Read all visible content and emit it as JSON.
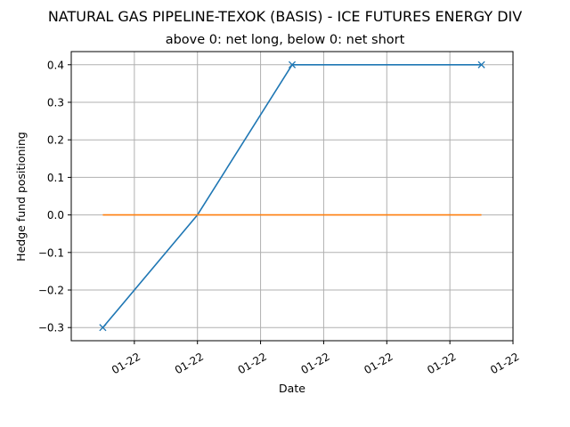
{
  "chart_data": {
    "type": "line",
    "title": "NATURAL GAS PIPELINE-TEXOK (BASIS) - ICE FUTURES ENERGY DIV",
    "subtitle": "above 0: net long, below 0: net short",
    "xlabel": "Date",
    "ylabel": "Hedge fund positioning",
    "x_tick_labels": [
      "01-22",
      "01-22",
      "01-22",
      "01-22",
      "01-22",
      "01-22",
      "01-22"
    ],
    "y_ticks": [
      -0.3,
      -0.2,
      -0.1,
      0.0,
      0.1,
      0.2,
      0.3,
      0.4
    ],
    "y_tick_labels": [
      "−0.3",
      "−0.2",
      "−0.1",
      "0.0",
      "0.1",
      "0.2",
      "0.3",
      "0.4"
    ],
    "ylim": [
      -0.335,
      0.435
    ],
    "xlim": [
      -0.25,
      3.25
    ],
    "grid": true,
    "series": [
      {
        "color": "#1f77b4",
        "marker": "x",
        "x": [
          0,
          0.75,
          1.5,
          3
        ],
        "y": [
          -0.3,
          0.0,
          0.4,
          0.4
        ],
        "marker_points": [
          0,
          2,
          3
        ]
      },
      {
        "color": "#ff7f0e",
        "marker": "none",
        "x": [
          0,
          3
        ],
        "y": [
          0.0,
          0.0
        ]
      }
    ],
    "x_tick_positions": [
      0.25,
      0.75,
      1.25,
      1.75,
      2.25,
      2.75,
      3.25
    ]
  }
}
